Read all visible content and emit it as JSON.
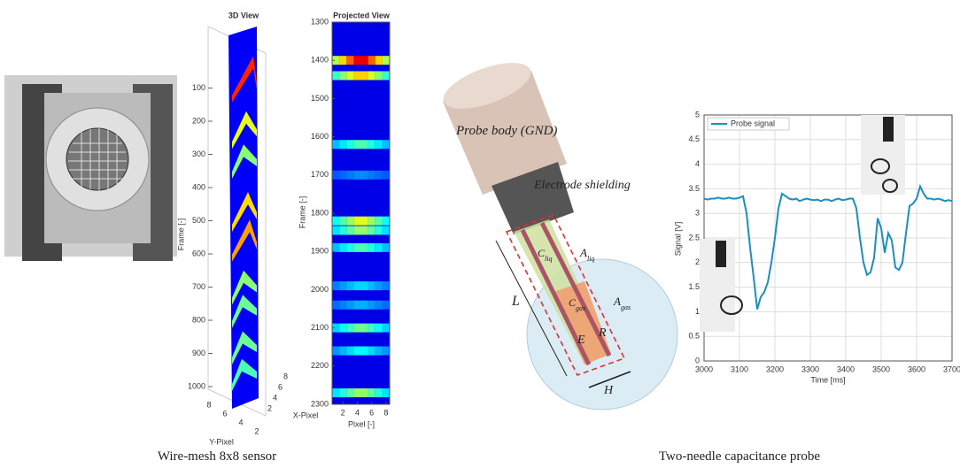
{
  "captions": [
    "Wire-mesh 8x8 sensor",
    "Two-needle capacitance probe"
  ],
  "diagram": {
    "body": "Probe body (GND)",
    "shielding": "Electrode shielding",
    "c_liq": {
      "main": "C",
      "sub": "liq"
    },
    "a_liq": {
      "main": "A",
      "sub": "liq"
    },
    "c_gas": {
      "main": "C",
      "sub": "gas"
    },
    "a_gas": {
      "main": "A",
      "sub": "gas"
    },
    "length": "L",
    "electrode": "E",
    "radius": "R",
    "height": "H"
  },
  "chart_data": [
    {
      "type": "surface3d",
      "title": "3D View",
      "ylabel": "Frame [-]",
      "xlabel": "X-Pixel",
      "zlabel": "Y-Pixel",
      "y": [
        90,
        230,
        320,
        480,
        570,
        700,
        770,
        880,
        960
      ],
      "values": [
        0.9,
        0.5,
        0.35,
        0.6,
        0.7,
        0.35,
        0.3,
        0.3,
        0.25
      ],
      "ylim": [
        0,
        1000
      ],
      "yticks": [
        100,
        200,
        300,
        400,
        500,
        600,
        700,
        800,
        900,
        1000
      ],
      "xticks": [
        2,
        4,
        6,
        8
      ],
      "zticks": [
        2,
        4,
        6,
        8
      ]
    },
    {
      "type": "heatmap",
      "title": "Projected View",
      "xlabel": "Pixel [-]",
      "ylabel": "Frame [-]",
      "y": [
        1400,
        1440,
        1620,
        1700,
        1820,
        1845,
        1890,
        1990,
        2040,
        2100,
        2160,
        2270
      ],
      "values": [
        1.0,
        0.7,
        0.4,
        0.15,
        0.6,
        0.5,
        0.4,
        0.25,
        0.2,
        0.45,
        0.3,
        0.5
      ],
      "ylim": [
        1300,
        2300
      ],
      "yticks": [
        1300,
        1400,
        1500,
        1600,
        1700,
        1800,
        1900,
        2000,
        2100,
        2200,
        2300
      ],
      "xlim": [
        0.5,
        8.5
      ],
      "xticks": [
        2,
        4,
        6,
        8
      ]
    },
    {
      "type": "line",
      "xlabel": "Time  [ms]",
      "ylabel": "Signal [V]",
      "x": [
        3000,
        3010,
        3020,
        3030,
        3040,
        3050,
        3060,
        3070,
        3080,
        3090,
        3100,
        3110,
        3120,
        3130,
        3140,
        3150,
        3160,
        3170,
        3180,
        3190,
        3200,
        3210,
        3220,
        3230,
        3240,
        3250,
        3260,
        3270,
        3280,
        3290,
        3300,
        3310,
        3320,
        3330,
        3340,
        3350,
        3360,
        3370,
        3380,
        3390,
        3400,
        3410,
        3420,
        3430,
        3440,
        3450,
        3460,
        3470,
        3480,
        3490,
        3500,
        3510,
        3520,
        3530,
        3540,
        3550,
        3560,
        3570,
        3580,
        3590,
        3600,
        3610,
        3620,
        3630,
        3640,
        3650,
        3660,
        3670,
        3680,
        3690,
        3700
      ],
      "series": [
        {
          "name": "Probe signal",
          "color": "#1a8fc0",
          "values": [
            3.3,
            3.28,
            3.3,
            3.3,
            3.32,
            3.3,
            3.3,
            3.32,
            3.3,
            3.3,
            3.32,
            3.35,
            3.0,
            2.3,
            1.7,
            1.05,
            1.3,
            1.4,
            1.6,
            2.0,
            2.5,
            3.1,
            3.4,
            3.35,
            3.3,
            3.28,
            3.3,
            3.25,
            3.28,
            3.3,
            3.28,
            3.27,
            3.28,
            3.25,
            3.28,
            3.28,
            3.25,
            3.28,
            3.3,
            3.27,
            3.28,
            3.3,
            3.3,
            3.1,
            2.5,
            2.0,
            1.75,
            1.8,
            2.1,
            2.9,
            2.7,
            2.2,
            2.6,
            2.45,
            1.9,
            1.85,
            2.0,
            2.6,
            3.15,
            3.2,
            3.3,
            3.55,
            3.4,
            3.3,
            3.3,
            3.28,
            3.3,
            3.28,
            3.25,
            3.27,
            3.25
          ]
        }
      ],
      "xlim": [
        3000,
        3700
      ],
      "xticks": [
        3000,
        3100,
        3200,
        3300,
        3400,
        3500,
        3600,
        3700
      ],
      "ylim": [
        0,
        5
      ],
      "yticks": [
        0,
        0.5,
        1,
        1.5,
        2,
        2.5,
        3,
        3.5,
        4,
        4.5,
        5
      ],
      "grid": true,
      "legend": "top-left"
    }
  ]
}
